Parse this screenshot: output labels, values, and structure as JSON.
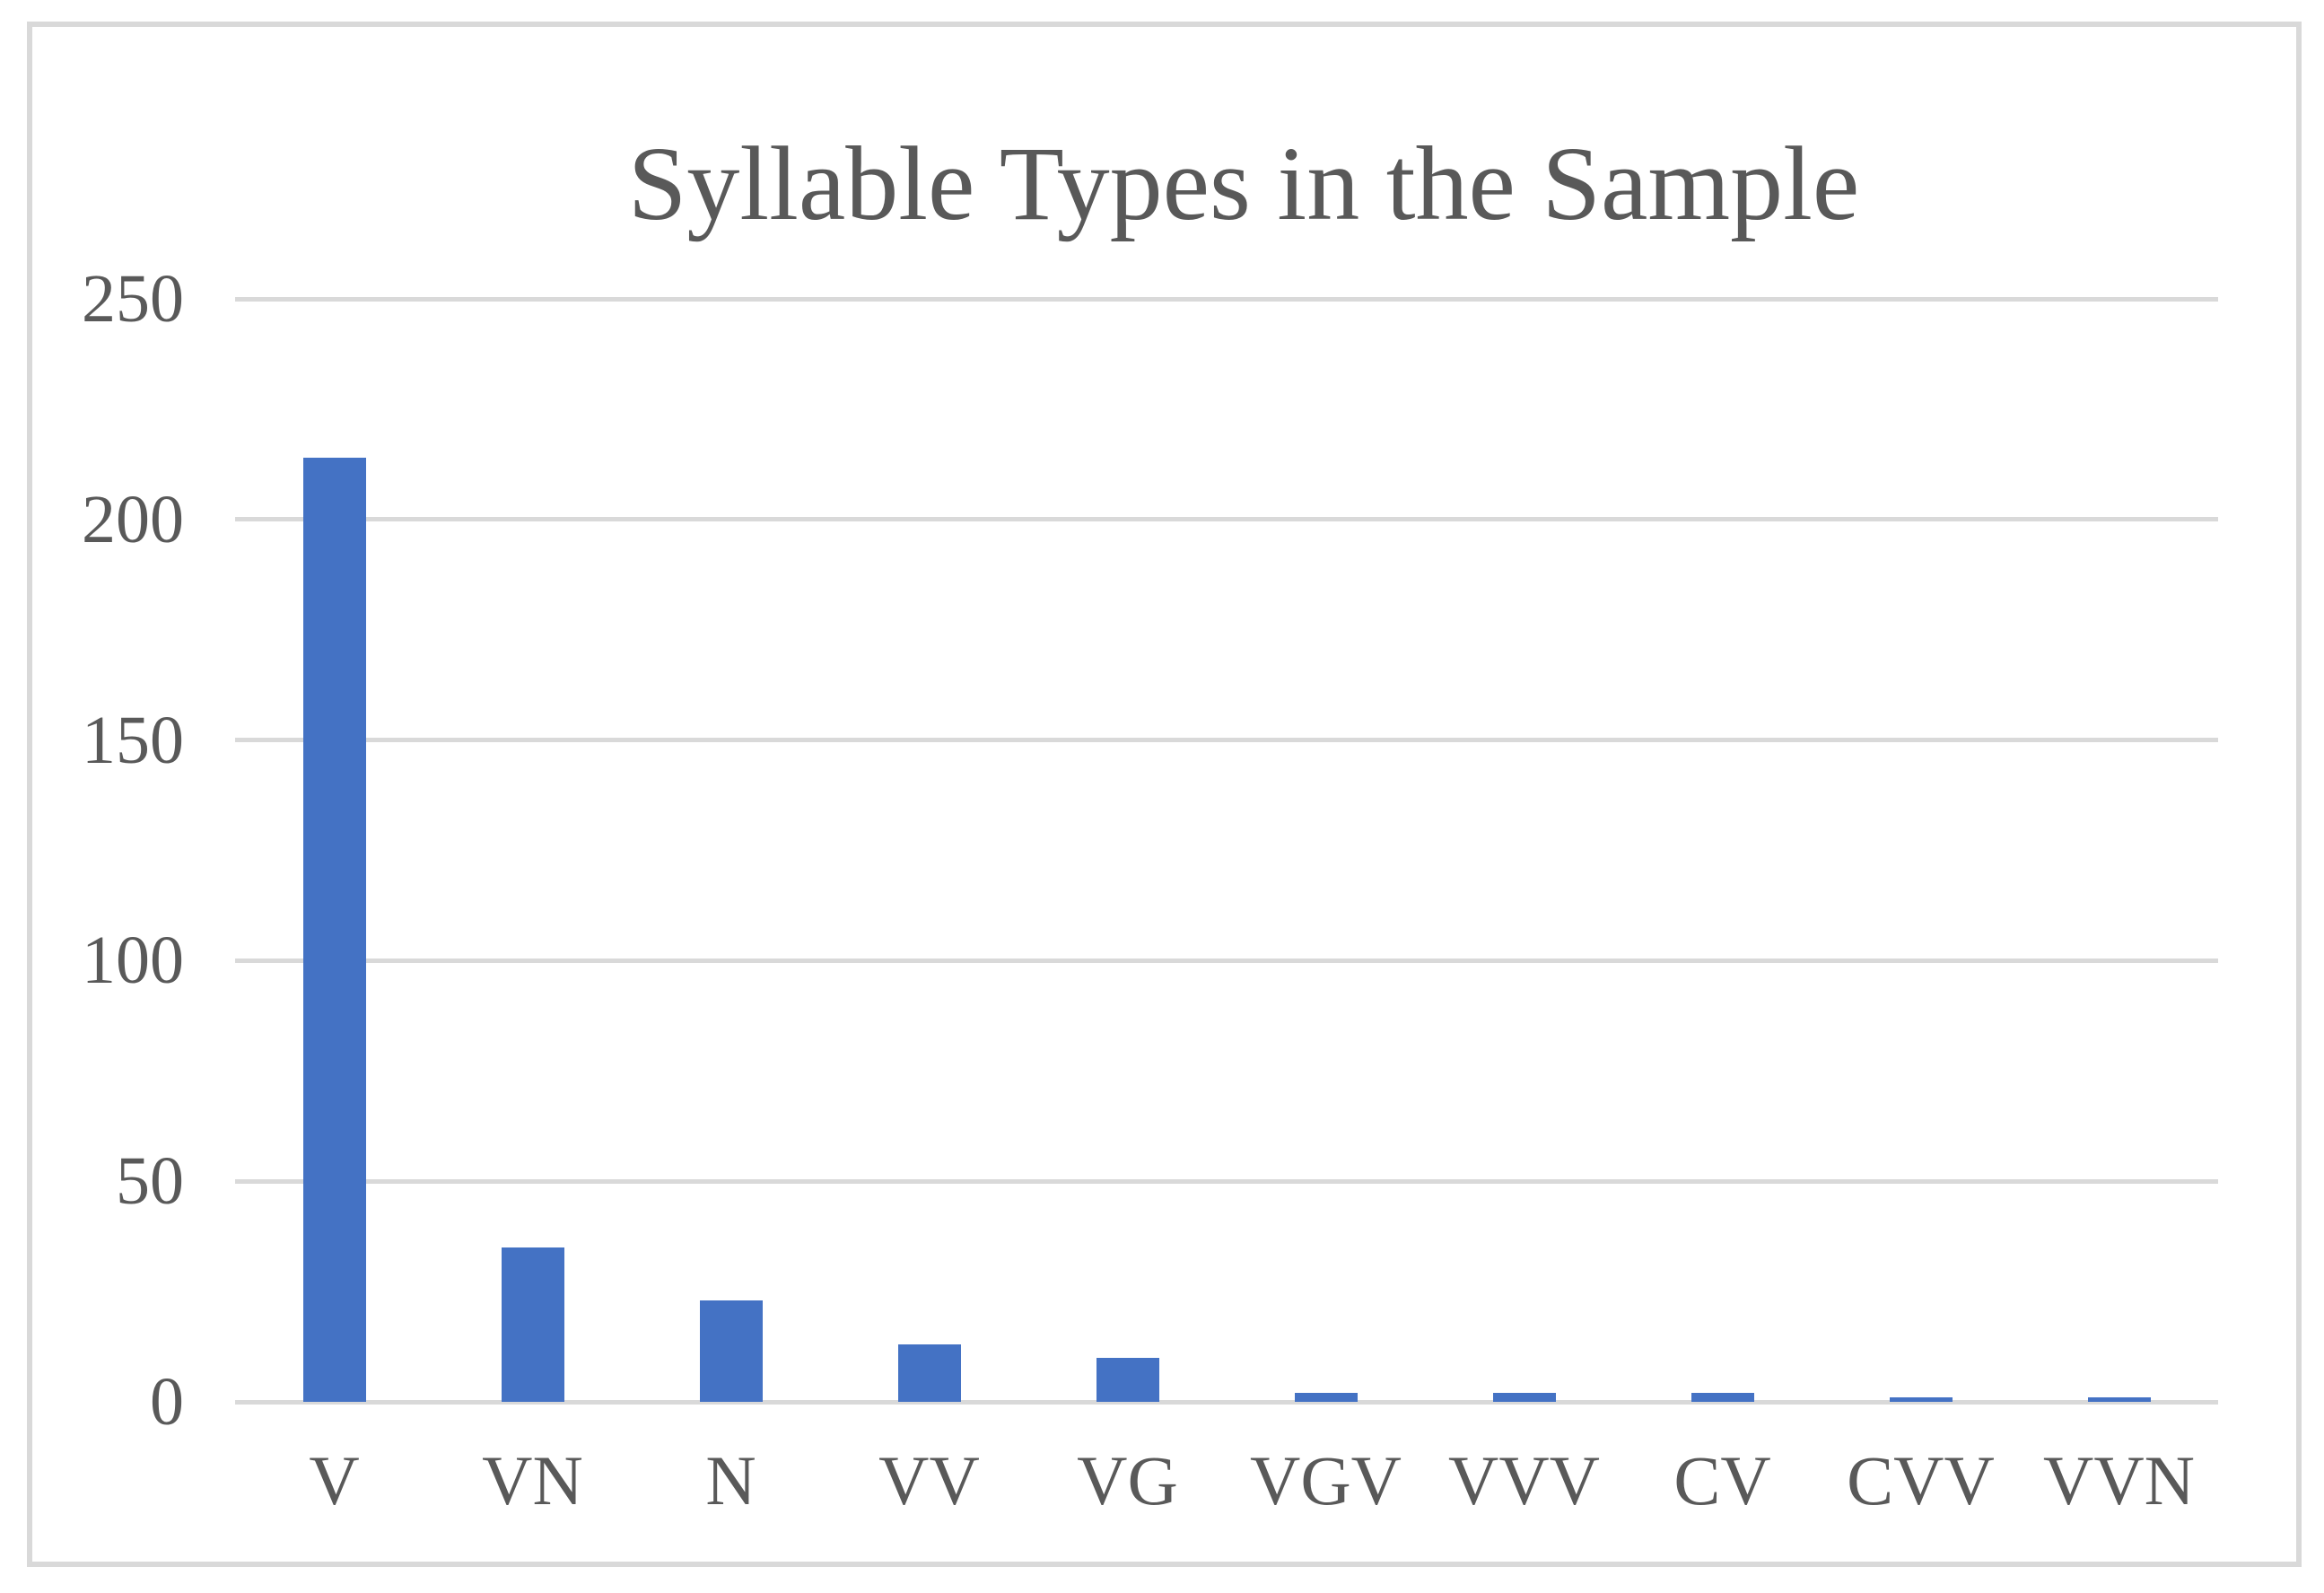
{
  "figure": {
    "title": "Syllable Types in the Sample"
  },
  "chart_data": {
    "type": "bar",
    "title": "Syllable Types in the Sample",
    "categories": [
      "V",
      "VN",
      "N",
      "VV",
      "VG",
      "VGV",
      "VVV",
      "CV",
      "CVV",
      "VVN"
    ],
    "values": [
      214,
      35,
      23,
      13,
      10,
      2,
      2,
      2,
      1,
      1
    ],
    "xlabel": "",
    "ylabel": "",
    "ylim": [
      0,
      250
    ],
    "yticks": [
      0,
      50,
      100,
      150,
      200,
      250
    ],
    "grid": "horizontal-only",
    "legend": "none",
    "colors": {
      "bar": "#4472c4",
      "gridline": "#d9d9d9",
      "text": "#595959",
      "frame_border": "#d9d9d9",
      "background": "#ffffff"
    }
  }
}
